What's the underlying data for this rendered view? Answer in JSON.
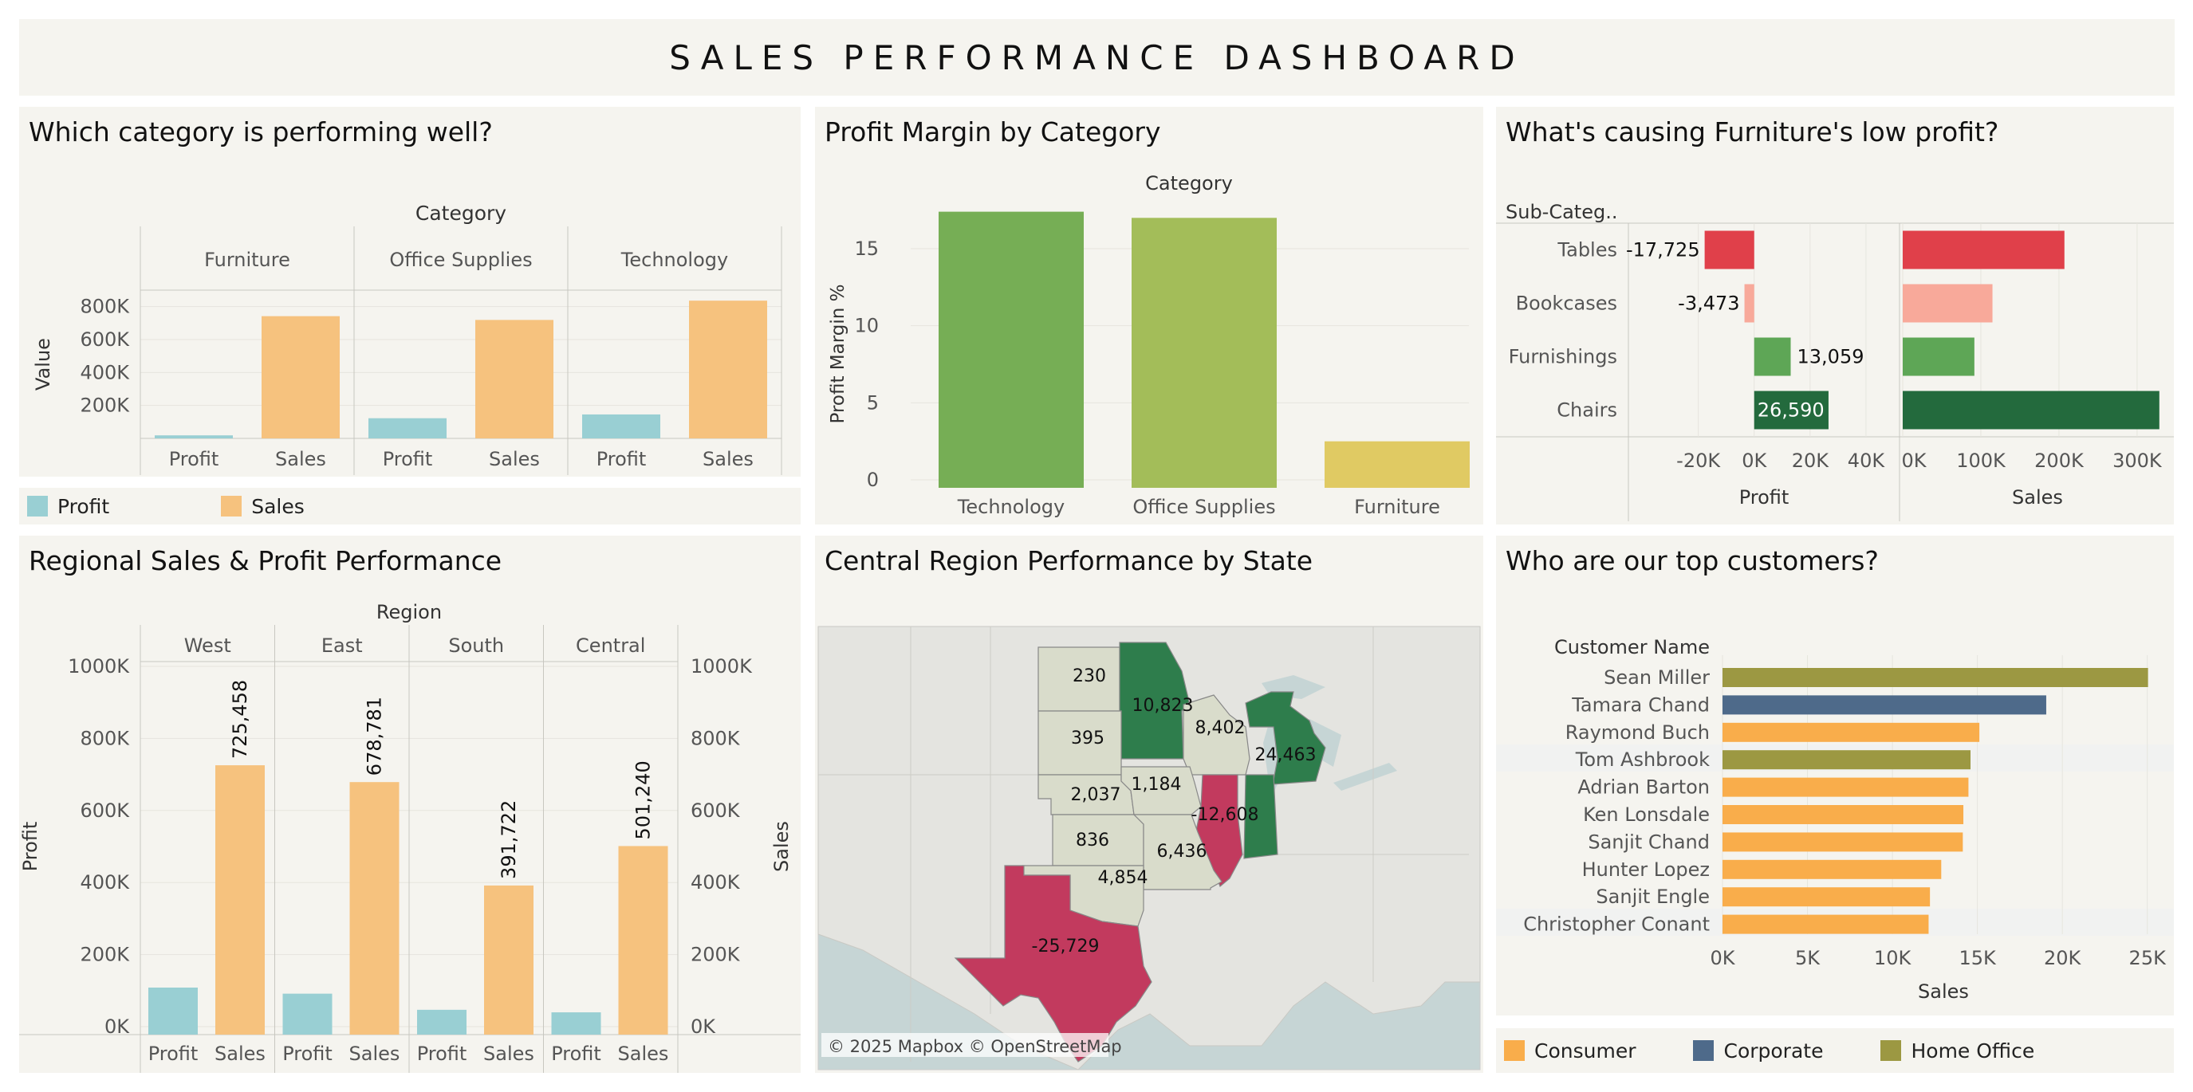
{
  "dashboard": {
    "title": "SALES PERFORMANCE DASHBOARD"
  },
  "colors": {
    "profit": "#99cfd3",
    "sales": "#f6c27e",
    "panel_bg": "#f5f4ef",
    "green_dark": "#2e7d4c",
    "green_mid": "#5ea656",
    "red": "#e0404a",
    "salmon": "#f8a99a",
    "consumer": "#f9ad4b",
    "corporate": "#4e6a8a",
    "home_office": "#9c9842",
    "map_loss": "#c23a5e",
    "map_light": "#d9dccb"
  },
  "chart_data": [
    {
      "id": "category",
      "type": "bar",
      "title": "Which category is performing well?",
      "header": "Category",
      "ylabel": "Value",
      "groups": [
        "Furniture",
        "Office Supplies",
        "Technology"
      ],
      "measures": [
        "Profit",
        "Sales"
      ],
      "series": [
        {
          "name": "Profit",
          "values": [
            18451,
            122491,
            145455
          ]
        },
        {
          "name": "Sales",
          "values": [
            742000,
            719047,
            836154
          ]
        }
      ],
      "ylim": [
        0,
        900000
      ],
      "yticks": [
        200000,
        400000,
        600000,
        800000
      ],
      "ytick_labels": [
        "200K",
        "400K",
        "600K",
        "800K"
      ],
      "legend": [
        {
          "label": "Profit",
          "color": "#99cfd3"
        },
        {
          "label": "Sales",
          "color": "#f6c27e"
        }
      ]
    },
    {
      "id": "margin",
      "type": "bar",
      "title": "Profit Margin by Category",
      "header": "Category",
      "ylabel": "Profit Margin %",
      "categories": [
        "Technology",
        "Office Supplies",
        "Furniture"
      ],
      "values": [
        17.4,
        17.0,
        2.5
      ],
      "colors": [
        "#76ae55",
        "#a3bd59",
        "#e0ca63"
      ],
      "ylim": [
        0,
        18
      ],
      "yticks": [
        0,
        5,
        10,
        15
      ],
      "ytick_labels": [
        "0",
        "5",
        "10",
        "15"
      ]
    },
    {
      "id": "furniture",
      "type": "bar",
      "title": "What's causing Furniture's low profit?",
      "row_header": "Sub-Categ..",
      "categories": [
        "Tables",
        "Bookcases",
        "Furnishings",
        "Chairs"
      ],
      "profit": [
        -17725,
        -3473,
        13059,
        26590
      ],
      "profit_labels": [
        "-17,725",
        "-3,473",
        "13,059",
        "26,590"
      ],
      "sales": [
        206966,
        114880,
        91705,
        328449
      ],
      "colors": [
        "#e0404a",
        "#f8a99a",
        "#5ea656",
        "#236a3d"
      ],
      "profit_axis": {
        "label": "Profit",
        "ticks": [
          -20000,
          0,
          20000,
          40000
        ],
        "tick_labels": [
          "-20K",
          "0K",
          "20K",
          "40K"
        ],
        "range": [
          -45000,
          52000
        ]
      },
      "sales_axis": {
        "label": "Sales",
        "ticks": [
          0,
          100000,
          200000,
          300000
        ],
        "tick_labels": [
          "0K",
          "100K",
          "200K",
          "300K"
        ],
        "range": [
          0,
          345000
        ]
      }
    },
    {
      "id": "regional",
      "type": "bar",
      "title": "Regional Sales & Profit Performance",
      "header": "Region",
      "groups": [
        "West",
        "East",
        "South",
        "Central"
      ],
      "measures": [
        "Profit",
        "Sales"
      ],
      "series": [
        {
          "name": "Profit",
          "values": [
            108418,
            91523,
            46749,
            39706
          ]
        },
        {
          "name": "Sales",
          "values": [
            725458,
            678781,
            391722,
            501240
          ]
        }
      ],
      "sales_labels": [
        "725,458",
        "678,781",
        "391,722",
        "501,240"
      ],
      "ylabel_left": "Profit",
      "ylabel_right": "Sales",
      "ylim": [
        0,
        1000000
      ],
      "yticks": [
        0,
        200000,
        400000,
        600000,
        800000,
        1000000
      ],
      "ytick_labels": [
        "0K",
        "200K",
        "400K",
        "600K",
        "800K",
        "1000K"
      ]
    },
    {
      "id": "central-map",
      "type": "map",
      "title": "Central Region Performance by State",
      "states": [
        {
          "name": "North Dakota",
          "value": "230"
        },
        {
          "name": "Minnesota",
          "value": "10,823"
        },
        {
          "name": "South Dakota",
          "value": "395"
        },
        {
          "name": "Wisconsin",
          "value": "8,402"
        },
        {
          "name": "Michigan",
          "value": "24,463"
        },
        {
          "name": "Nebraska",
          "value": "2,037"
        },
        {
          "name": "Iowa",
          "value": "1,184"
        },
        {
          "name": "Illinois",
          "value": "-12,608"
        },
        {
          "name": "Kansas",
          "value": "836"
        },
        {
          "name": "Missouri",
          "value": "6,436"
        },
        {
          "name": "Oklahoma",
          "value": "4,854"
        },
        {
          "name": "Texas",
          "value": "-25,729"
        }
      ],
      "attribution": "© 2025 Mapbox © OpenStreetMap"
    },
    {
      "id": "customers",
      "type": "bar",
      "title": "Who are our top customers?",
      "row_header": "Customer Name",
      "xlabel": "Sales",
      "customers": [
        "Sean Miller",
        "Tamara Chand",
        "Raymond Buch",
        "Tom Ashbrook",
        "Adrian Barton",
        "Ken Lonsdale",
        "Sanjit Chand",
        "Hunter Lopez",
        "Sanjit Engle",
        "Christopher Conant"
      ],
      "values": [
        25043,
        19052,
        15117,
        14596,
        14474,
        14175,
        14142,
        12873,
        12209,
        12129
      ],
      "segments": [
        "Home Office",
        "Corporate",
        "Consumer",
        "Home Office",
        "Consumer",
        "Consumer",
        "Consumer",
        "Consumer",
        "Consumer",
        "Consumer"
      ],
      "xlim": [
        0,
        26000
      ],
      "xticks": [
        0,
        5000,
        10000,
        15000,
        20000,
        25000
      ],
      "xtick_labels": [
        "0K",
        "5K",
        "10K",
        "15K",
        "20K",
        "25K"
      ],
      "legend": [
        {
          "label": "Consumer",
          "color": "#f9ad4b"
        },
        {
          "label": "Corporate",
          "color": "#4e6a8a"
        },
        {
          "label": "Home Office",
          "color": "#9c9842"
        }
      ]
    }
  ]
}
